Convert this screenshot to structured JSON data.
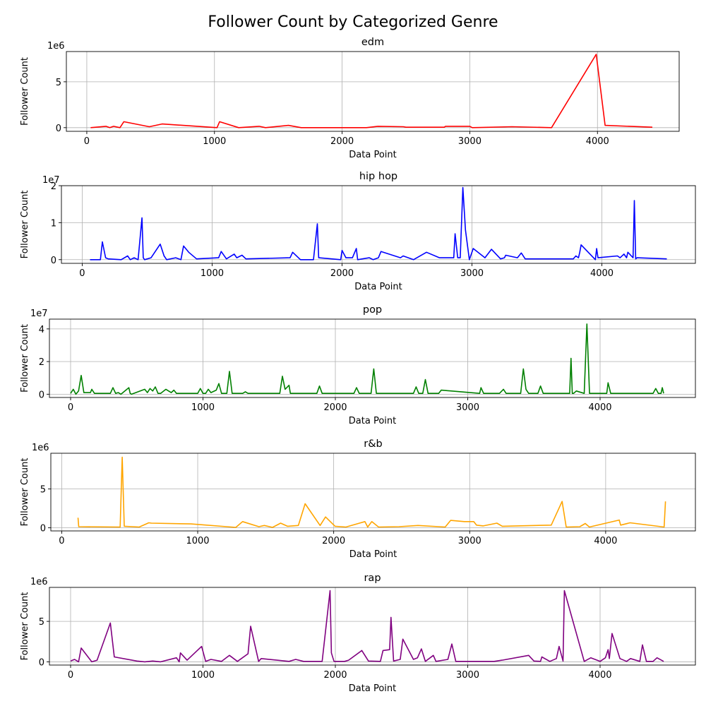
{
  "figure": {
    "suptitle": "Follower Count by Categorized Genre"
  },
  "chart_data": [
    {
      "type": "line",
      "title": "edm",
      "xlabel": "Data Point",
      "ylabel": "Follower Count",
      "offset_label": "1e6",
      "color": "#ff0000",
      "grid": true,
      "xlim": [
        -160,
        4640
      ],
      "ylim": [
        -0.4,
        8.3
      ],
      "xticks": [
        0,
        1000,
        2000,
        3000,
        4000
      ],
      "yticks": [
        0,
        5
      ],
      "series": [
        {
          "x": [
            30,
            150,
            180,
            210,
            260,
            290,
            490,
            590,
            1020,
            1040,
            1190,
            1350,
            1400,
            1580,
            1680,
            2190,
            2280,
            2480,
            2500,
            2800,
            2810,
            3000,
            3020,
            3330,
            3640,
            3990,
            4060,
            4430
          ],
          "y": [
            0.0,
            0.15,
            0.0,
            0.15,
            0.0,
            0.65,
            0.1,
            0.4,
            0.0,
            0.65,
            0.0,
            0.15,
            0.0,
            0.25,
            0.0,
            0.0,
            0.15,
            0.1,
            0.05,
            0.05,
            0.15,
            0.15,
            0.0,
            0.1,
            0.0,
            8.0,
            0.25,
            0.05
          ]
        }
      ]
    },
    {
      "type": "line",
      "title": "hip hop",
      "xlabel": "Data Point",
      "ylabel": "Follower Count",
      "offset_label": "1e7",
      "color": "#0000ff",
      "grid": true,
      "xlim": [
        -160,
        4720
      ],
      "ylim": [
        -0.1,
        2.0
      ],
      "xticks": [
        0,
        1000,
        2000,
        3000,
        4000
      ],
      "yticks": [
        0,
        1,
        2
      ],
      "series": [
        {
          "x": [
            60,
            140,
            155,
            180,
            200,
            300,
            350,
            370,
            400,
            430,
            460,
            470,
            480,
            530,
            600,
            630,
            650,
            720,
            760,
            780,
            820,
            880,
            1050,
            1070,
            1110,
            1170,
            1190,
            1230,
            1260,
            1600,
            1620,
            1680,
            1780,
            1810,
            1820,
            1990,
            2000,
            2030,
            2080,
            2110,
            2120,
            2210,
            2240,
            2280,
            2300,
            2450,
            2470,
            2550,
            2650,
            2750,
            2860,
            2870,
            2890,
            2910,
            2930,
            2950,
            2980,
            3010,
            3100,
            3150,
            3220,
            3250,
            3260,
            3350,
            3380,
            3410,
            3780,
            3800,
            3820,
            3830,
            3840,
            3950,
            3960,
            3970,
            4120,
            4140,
            4170,
            4190,
            4200,
            4240,
            4250,
            4260,
            4270,
            4500
          ],
          "y": [
            0.0,
            0.0,
            0.48,
            0.05,
            0.02,
            0.0,
            0.1,
            0.0,
            0.05,
            0.0,
            1.13,
            0.05,
            0.0,
            0.05,
            0.42,
            0.1,
            0.0,
            0.05,
            0.0,
            0.37,
            0.2,
            0.02,
            0.05,
            0.22,
            0.02,
            0.15,
            0.05,
            0.12,
            0.02,
            0.05,
            0.2,
            0.0,
            0.0,
            0.97,
            0.05,
            0.0,
            0.25,
            0.05,
            0.05,
            0.3,
            0.0,
            0.05,
            0.0,
            0.05,
            0.22,
            0.05,
            0.1,
            0.0,
            0.2,
            0.05,
            0.05,
            0.7,
            0.05,
            0.05,
            1.95,
            0.8,
            0.0,
            0.3,
            0.05,
            0.28,
            0.02,
            0.05,
            0.12,
            0.05,
            0.18,
            0.02,
            0.02,
            0.1,
            0.05,
            0.2,
            0.4,
            0.0,
            0.3,
            0.05,
            0.1,
            0.05,
            0.15,
            0.05,
            0.2,
            0.05,
            1.6,
            0.02,
            0.05,
            0.02
          ]
        }
      ]
    },
    {
      "type": "line",
      "title": "pop",
      "xlabel": "Data Point",
      "ylabel": "Follower Count",
      "offset_label": "1e7",
      "color": "#008000",
      "grid": true,
      "xlim": [
        -160,
        4720
      ],
      "ylim": [
        -0.2,
        4.6
      ],
      "xticks": [
        0,
        1000,
        2000,
        3000,
        4000
      ],
      "yticks": [
        0,
        2,
        4
      ],
      "series": [
        {
          "x": [
            0,
            20,
            40,
            60,
            80,
            100,
            150,
            160,
            180,
            300,
            320,
            340,
            360,
            380,
            440,
            450,
            460,
            560,
            580,
            600,
            620,
            640,
            660,
            680,
            720,
            740,
            760,
            780,
            800,
            960,
            980,
            1000,
            1020,
            1040,
            1060,
            1100,
            1120,
            1140,
            1180,
            1200,
            1220,
            1300,
            1320,
            1340,
            1580,
            1600,
            1620,
            1650,
            1660,
            1680,
            1860,
            1880,
            1900,
            2140,
            2160,
            2180,
            2270,
            2290,
            2310,
            2590,
            2610,
            2630,
            2660,
            2680,
            2700,
            2780,
            2800,
            3090,
            3100,
            3120,
            3240,
            3270,
            3290,
            3400,
            3420,
            3440,
            3460,
            3530,
            3550,
            3570,
            3770,
            3780,
            3790,
            3800,
            3820,
            3880,
            3900,
            3920,
            4050,
            4060,
            4080,
            4100,
            4400,
            4420,
            4440,
            4460,
            4470,
            4480
          ],
          "y": [
            0.05,
            0.3,
            0.0,
            0.2,
            1.15,
            0.1,
            0.1,
            0.3,
            0.05,
            0.05,
            0.4,
            0.05,
            0.1,
            0.0,
            0.4,
            0.05,
            0.0,
            0.3,
            0.1,
            0.35,
            0.2,
            0.45,
            0.05,
            0.05,
            0.3,
            0.2,
            0.1,
            0.25,
            0.05,
            0.05,
            0.35,
            0.05,
            0.05,
            0.3,
            0.1,
            0.25,
            0.65,
            0.05,
            0.05,
            1.4,
            0.05,
            0.05,
            0.15,
            0.05,
            0.05,
            1.1,
            0.3,
            0.55,
            0.05,
            0.05,
            0.05,
            0.5,
            0.05,
            0.05,
            0.4,
            0.05,
            0.05,
            1.55,
            0.05,
            0.05,
            0.45,
            0.05,
            0.05,
            0.9,
            0.05,
            0.05,
            0.25,
            0.05,
            0.4,
            0.05,
            0.05,
            0.3,
            0.05,
            0.05,
            1.55,
            0.3,
            0.05,
            0.05,
            0.5,
            0.05,
            0.05,
            2.2,
            0.05,
            0.05,
            0.2,
            0.05,
            4.3,
            0.05,
            0.05,
            0.7,
            0.05,
            0.05,
            0.05,
            0.35,
            0.05,
            0.05,
            0.4,
            0.05
          ]
        }
      ]
    },
    {
      "type": "line",
      "title": "r&b",
      "xlabel": "Data Point",
      "ylabel": "Follower Count",
      "offset_label": "1e6",
      "color": "#ffa500",
      "grid": true,
      "xlim": [
        -80,
        4660
      ],
      "ylim": [
        -0.4,
        9.6
      ],
      "xticks": [
        0,
        1000,
        2000,
        3000,
        4000
      ],
      "yticks": [
        0,
        5
      ],
      "series": [
        {
          "x": [
            120,
            125,
            430,
            445,
            460,
            570,
            640,
            660,
            950,
            1280,
            1330,
            1450,
            1490,
            1550,
            1610,
            1660,
            1740,
            1790,
            1900,
            1940,
            2010,
            2090,
            2230,
            2250,
            2280,
            2330,
            2480,
            2620,
            2820,
            2860,
            2960,
            3030,
            3050,
            3100,
            3200,
            3240,
            3600,
            3680,
            3710,
            3810,
            3850,
            3880,
            4100,
            4110,
            4180,
            4430,
            4440
          ],
          "y": [
            1.3,
            0.15,
            0.1,
            9.1,
            0.2,
            0.1,
            0.65,
            0.6,
            0.5,
            0.05,
            0.8,
            0.15,
            0.3,
            0.05,
            0.6,
            0.2,
            0.3,
            3.1,
            0.3,
            1.4,
            0.2,
            0.1,
            0.8,
            0.1,
            0.8,
            0.1,
            0.15,
            0.3,
            0.1,
            0.95,
            0.8,
            0.8,
            0.35,
            0.25,
            0.6,
            0.2,
            0.35,
            3.4,
            0.1,
            0.15,
            0.55,
            0.1,
            1.0,
            0.35,
            0.65,
            0.1,
            3.4
          ]
        }
      ]
    },
    {
      "type": "line",
      "title": "rap",
      "xlabel": "Data Point",
      "ylabel": "Follower Count",
      "offset_label": "1e6",
      "color": "#800080",
      "grid": true,
      "xlim": [
        -160,
        4720
      ],
      "ylim": [
        -0.4,
        9.2
      ],
      "xticks": [
        0,
        1000,
        2000,
        3000,
        4000
      ],
      "yticks": [
        0,
        5
      ],
      "series": [
        {
          "x": [
            0,
            30,
            60,
            80,
            160,
            200,
            300,
            330,
            500,
            560,
            620,
            680,
            800,
            820,
            830,
            880,
            990,
            1020,
            1060,
            1140,
            1200,
            1260,
            1340,
            1360,
            1420,
            1440,
            1650,
            1700,
            1760,
            1900,
            1960,
            1970,
            1990,
            2070,
            2100,
            2200,
            2250,
            2340,
            2360,
            2410,
            2420,
            2440,
            2490,
            2510,
            2590,
            2620,
            2650,
            2680,
            2740,
            2760,
            2850,
            2880,
            2910,
            2960,
            3060,
            3200,
            3260,
            3460,
            3500,
            3550,
            3560,
            3620,
            3670,
            3690,
            3720,
            3730,
            3880,
            3930,
            4000,
            4040,
            4060,
            4070,
            4090,
            4150,
            4200,
            4230,
            4300,
            4320,
            4350,
            4400,
            4430,
            4480
          ],
          "y": [
            0.1,
            0.3,
            0.0,
            1.7,
            0.0,
            0.2,
            4.8,
            0.6,
            0.1,
            0.0,
            0.1,
            0.0,
            0.5,
            0.0,
            1.1,
            0.2,
            1.9,
            0.05,
            0.3,
            0.05,
            0.8,
            0.05,
            1.0,
            4.4,
            0.05,
            0.4,
            0.05,
            0.3,
            0.05,
            0.05,
            8.8,
            1.1,
            0.05,
            0.05,
            0.2,
            1.4,
            0.1,
            0.05,
            1.4,
            1.5,
            5.5,
            0.1,
            0.3,
            2.8,
            0.3,
            0.5,
            1.6,
            0.05,
            0.8,
            0.05,
            0.3,
            2.2,
            0.05,
            0.05,
            0.05,
            0.05,
            0.2,
            0.8,
            0.1,
            0.05,
            0.6,
            0.05,
            0.4,
            1.9,
            0.1,
            8.8,
            0.05,
            0.5,
            0.05,
            0.5,
            1.5,
            0.4,
            3.5,
            0.4,
            0.05,
            0.4,
            0.05,
            2.1,
            0.05,
            0.05,
            0.5,
            0.05
          ]
        }
      ]
    }
  ]
}
